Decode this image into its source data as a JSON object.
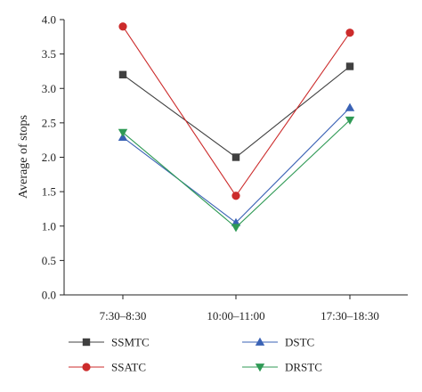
{
  "chart_data": {
    "type": "line",
    "title": "",
    "xlabel": "",
    "ylabel": "Average of stops",
    "categories": [
      "7:30–8:30",
      "10:00–11:00",
      "17:30–18:30"
    ],
    "ylim": [
      0.0,
      4.0
    ],
    "yticks": [
      "0.0",
      "0.5",
      "1.0",
      "1.5",
      "2.0",
      "2.5",
      "3.0",
      "3.5",
      "4.0"
    ],
    "grid": false,
    "legend_position": "bottom",
    "series": [
      {
        "name": "SSMTC",
        "values": [
          3.2,
          2.0,
          3.32
        ],
        "color": "#404040",
        "marker": "square"
      },
      {
        "name": "SSATC",
        "values": [
          3.9,
          1.44,
          3.81
        ],
        "color": "#cc2b2b",
        "marker": "circle"
      },
      {
        "name": "DSTC",
        "values": [
          2.29,
          1.05,
          2.72
        ],
        "color": "#3a62b5",
        "marker": "triangle-up"
      },
      {
        "name": "DRSTC",
        "values": [
          2.36,
          0.98,
          2.54
        ],
        "color": "#2f9a55",
        "marker": "triangle-down"
      }
    ]
  }
}
